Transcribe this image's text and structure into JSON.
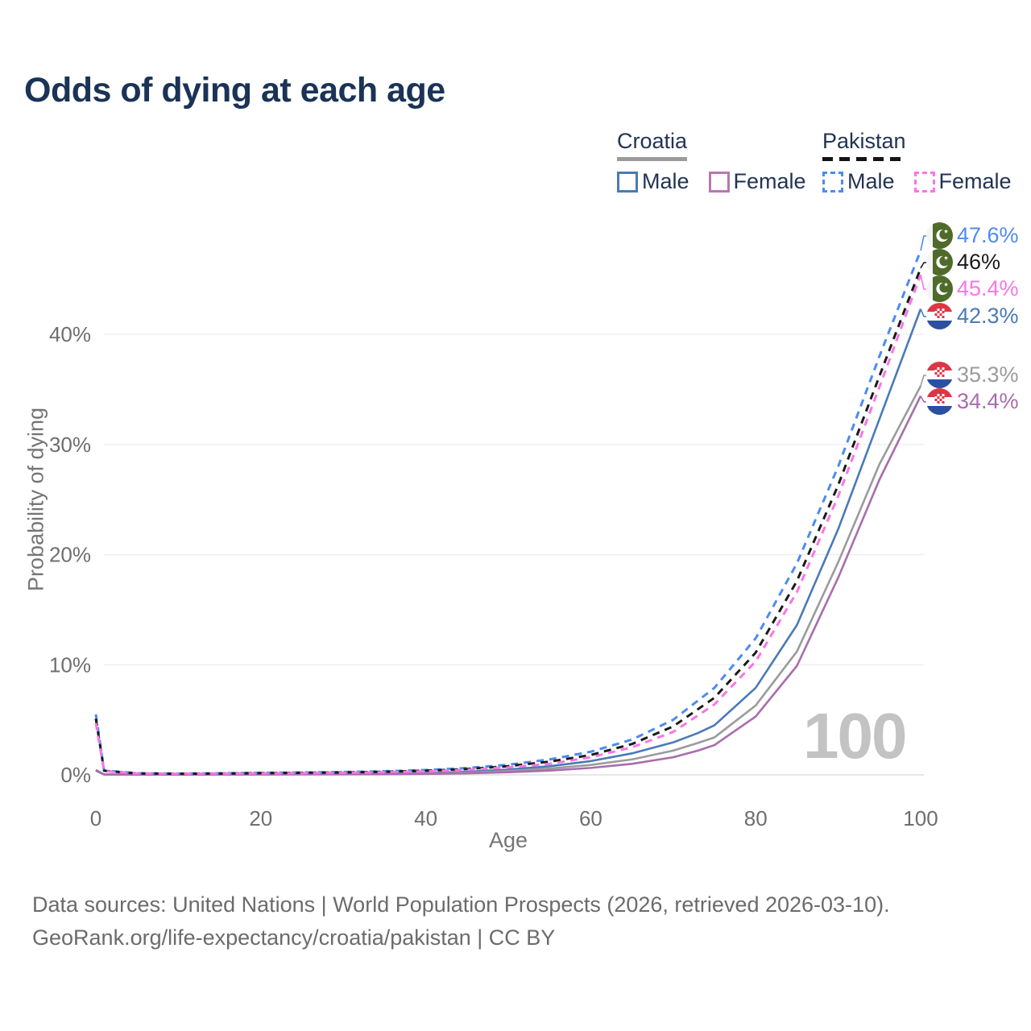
{
  "title": "Odds of dying at each age",
  "legend": {
    "groups": [
      {
        "country": "Croatia",
        "style": "solid",
        "items": [
          {
            "label": "Male",
            "color": "#4a7ab8"
          },
          {
            "label": "Female",
            "color": "#b678b2"
          }
        ]
      },
      {
        "country": "Pakistan",
        "style": "dashed",
        "items": [
          {
            "label": "Male",
            "color": "#4d8bf0"
          },
          {
            "label": "Female",
            "color": "#fb74e6"
          }
        ]
      }
    ]
  },
  "watermark": "100",
  "footer": {
    "line1": "Data sources: United Nations | World Population Prospects (2026, retrieved 2026-03-10).",
    "line2": "GeoRank.org/life-expectancy/croatia/pakistan | CC BY"
  },
  "chart_data": {
    "type": "line",
    "title": "Odds of dying at each age",
    "xlabel": "Age",
    "ylabel": "Probability of dying",
    "x_ticks": [
      0,
      20,
      40,
      60,
      80,
      100
    ],
    "y_ticks": [
      0,
      10,
      20,
      30,
      40
    ],
    "y_tick_suffix": "%",
    "xlim": [
      0,
      100
    ],
    "ylim": [
      0,
      48.5
    ],
    "grid": "horizontal",
    "legend_position": "top-right",
    "series": [
      {
        "id": "pakistan-male",
        "country": "Pakistan",
        "sex": "male",
        "color": "#4d8bf0",
        "dash": true,
        "end_label": "47.6%",
        "end_value": 47.6,
        "points": [
          [
            0,
            5.5
          ],
          [
            1,
            0.4
          ],
          [
            5,
            0.15
          ],
          [
            10,
            0.12
          ],
          [
            15,
            0.15
          ],
          [
            20,
            0.19
          ],
          [
            25,
            0.22
          ],
          [
            30,
            0.26
          ],
          [
            35,
            0.33
          ],
          [
            40,
            0.44
          ],
          [
            45,
            0.62
          ],
          [
            50,
            0.92
          ],
          [
            55,
            1.4
          ],
          [
            60,
            2.1
          ],
          [
            65,
            3.2
          ],
          [
            70,
            5.0
          ],
          [
            75,
            7.9
          ],
          [
            80,
            12.4
          ],
          [
            85,
            19.2
          ],
          [
            90,
            28.0
          ],
          [
            95,
            38.0
          ],
          [
            100,
            47.6
          ]
        ]
      },
      {
        "id": "pakistan-all",
        "country": "Pakistan",
        "sex": "all",
        "color": "#1a1a1a",
        "dash": true,
        "end_label": "46%",
        "end_value": 46.0,
        "points": [
          [
            0,
            5.1
          ],
          [
            1,
            0.37
          ],
          [
            5,
            0.13
          ],
          [
            10,
            0.1
          ],
          [
            15,
            0.12
          ],
          [
            20,
            0.16
          ],
          [
            25,
            0.19
          ],
          [
            30,
            0.22
          ],
          [
            35,
            0.28
          ],
          [
            40,
            0.38
          ],
          [
            45,
            0.53
          ],
          [
            50,
            0.79
          ],
          [
            55,
            1.2
          ],
          [
            60,
            1.8
          ],
          [
            65,
            2.8
          ],
          [
            70,
            4.4
          ],
          [
            75,
            7.0
          ],
          [
            80,
            11.1
          ],
          [
            85,
            17.6
          ],
          [
            90,
            26.3
          ],
          [
            95,
            36.2
          ],
          [
            100,
            46.0
          ]
        ]
      },
      {
        "id": "pakistan-female",
        "country": "Pakistan",
        "sex": "female",
        "color": "#fb74e6",
        "dash": true,
        "end_label": "45.4%",
        "end_value": 45.4,
        "points": [
          [
            0,
            4.7
          ],
          [
            1,
            0.34
          ],
          [
            5,
            0.12
          ],
          [
            10,
            0.09
          ],
          [
            15,
            0.1
          ],
          [
            20,
            0.13
          ],
          [
            25,
            0.15
          ],
          [
            30,
            0.18
          ],
          [
            35,
            0.24
          ],
          [
            40,
            0.32
          ],
          [
            45,
            0.46
          ],
          [
            50,
            0.68
          ],
          [
            55,
            1.0
          ],
          [
            60,
            1.6
          ],
          [
            65,
            2.5
          ],
          [
            70,
            3.9
          ],
          [
            75,
            6.4
          ],
          [
            80,
            10.3
          ],
          [
            85,
            16.6
          ],
          [
            90,
            25.3
          ],
          [
            95,
            35.2
          ],
          [
            100,
            45.4
          ]
        ]
      },
      {
        "id": "croatia-male",
        "country": "Croatia",
        "sex": "male",
        "color": "#4a7ab8",
        "dash": false,
        "end_label": "42.3%",
        "end_value": 42.3,
        "points": [
          [
            0,
            0.45
          ],
          [
            1,
            0.04
          ],
          [
            5,
            0.02
          ],
          [
            10,
            0.02
          ],
          [
            15,
            0.04
          ],
          [
            20,
            0.07
          ],
          [
            25,
            0.08
          ],
          [
            30,
            0.09
          ],
          [
            35,
            0.12
          ],
          [
            40,
            0.18
          ],
          [
            45,
            0.29
          ],
          [
            50,
            0.48
          ],
          [
            55,
            0.78
          ],
          [
            60,
            1.25
          ],
          [
            65,
            1.95
          ],
          [
            70,
            2.95
          ],
          [
            73,
            3.8
          ],
          [
            75,
            4.5
          ],
          [
            80,
            7.9
          ],
          [
            85,
            13.6
          ],
          [
            90,
            22.3
          ],
          [
            95,
            32.3
          ],
          [
            100,
            42.3
          ]
        ]
      },
      {
        "id": "croatia-all",
        "country": "Croatia",
        "sex": "all",
        "color": "#9b9b9b",
        "dash": false,
        "end_label": "35.3%",
        "end_value": 35.3,
        "points": [
          [
            0,
            0.42
          ],
          [
            1,
            0.03
          ],
          [
            5,
            0.02
          ],
          [
            10,
            0.02
          ],
          [
            15,
            0.03
          ],
          [
            20,
            0.05
          ],
          [
            25,
            0.06
          ],
          [
            30,
            0.07
          ],
          [
            35,
            0.09
          ],
          [
            40,
            0.13
          ],
          [
            45,
            0.21
          ],
          [
            50,
            0.35
          ],
          [
            55,
            0.57
          ],
          [
            60,
            0.9
          ],
          [
            65,
            1.4
          ],
          [
            70,
            2.2
          ],
          [
            73,
            2.9
          ],
          [
            75,
            3.4
          ],
          [
            80,
            6.3
          ],
          [
            85,
            11.2
          ],
          [
            90,
            19.3
          ],
          [
            95,
            28.2
          ],
          [
            100,
            35.3
          ]
        ]
      },
      {
        "id": "croatia-female",
        "country": "Croatia",
        "sex": "female",
        "color": "#a96cae",
        "dash": false,
        "end_label": "34.4%",
        "end_value": 34.4,
        "points": [
          [
            0,
            0.38
          ],
          [
            1,
            0.03
          ],
          [
            5,
            0.01
          ],
          [
            10,
            0.01
          ],
          [
            15,
            0.02
          ],
          [
            20,
            0.03
          ],
          [
            25,
            0.04
          ],
          [
            30,
            0.05
          ],
          [
            35,
            0.06
          ],
          [
            40,
            0.09
          ],
          [
            45,
            0.14
          ],
          [
            50,
            0.24
          ],
          [
            55,
            0.39
          ],
          [
            60,
            0.63
          ],
          [
            65,
            1.0
          ],
          [
            70,
            1.6
          ],
          [
            73,
            2.2
          ],
          [
            75,
            2.7
          ],
          [
            80,
            5.3
          ],
          [
            85,
            9.9
          ],
          [
            90,
            17.9
          ],
          [
            95,
            26.8
          ],
          [
            100,
            34.4
          ]
        ]
      }
    ]
  }
}
